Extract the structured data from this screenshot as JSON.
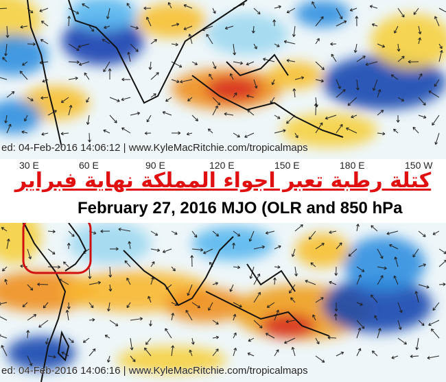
{
  "top_map": {
    "footer": "ed: 04-Feb-2016 14:06:12 | www.KyleMacRitchie.com/tropicalmaps"
  },
  "longitude_labels": [
    "30 E",
    "60 E",
    "90 E",
    "120 E",
    "150 E",
    "180 E",
    "150 W"
  ],
  "headline": "كتلة رطبة تعبر اجواء المملكة نهاية فبراير",
  "map_title": "February 27, 2016 MJO (OLR and 850 hPa",
  "bottom_map": {
    "footer": "ed: 04-Feb-2016 14:06:16 | www.KyleMacRitchie.com/tropicalmaps"
  }
}
